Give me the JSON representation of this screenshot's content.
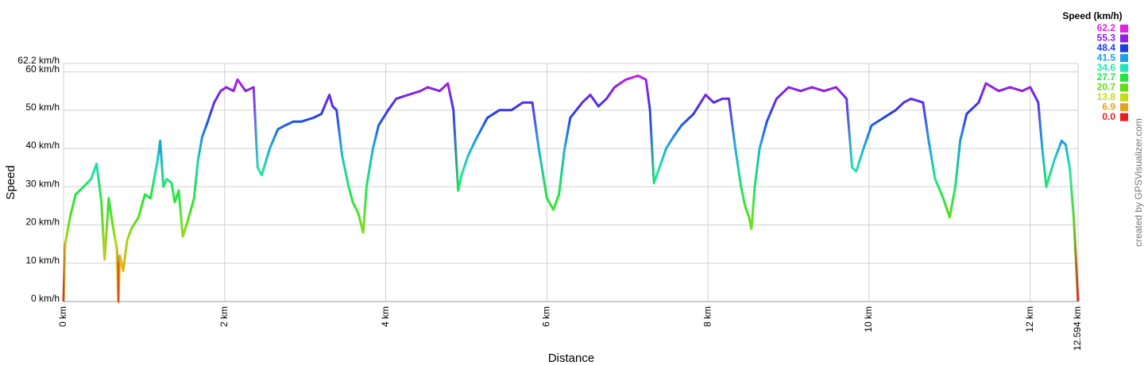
{
  "chart_data": {
    "type": "line",
    "x_label": "Distance",
    "y_label": "Speed",
    "credit": "created by GPSVisualizer.com",
    "legend_title": "Speed (km/h)",
    "color_scale": [
      {
        "value": 62.2,
        "color": "#e81ee8"
      },
      {
        "value": 55.3,
        "color": "#8c1ee8"
      },
      {
        "value": 48.4,
        "color": "#1e3ce8"
      },
      {
        "value": 41.5,
        "color": "#1ea0e8"
      },
      {
        "value": 34.6,
        "color": "#1ee8b4"
      },
      {
        "value": 27.7,
        "color": "#1ee83c"
      },
      {
        "value": 20.7,
        "color": "#64dc14"
      },
      {
        "value": 13.8,
        "color": "#c8dc14"
      },
      {
        "value": 6.9,
        "color": "#e8a01e"
      },
      {
        "value": 0,
        "label": "0.0",
        "color": "#e81e1e"
      }
    ],
    "xlim": [
      0,
      12.594
    ],
    "ylim": [
      0,
      62.2
    ],
    "xticks": [
      {
        "value": 0,
        "label": "0 km"
      },
      {
        "value": 2,
        "label": "2 km"
      },
      {
        "value": 4,
        "label": "4 km"
      },
      {
        "value": 6,
        "label": "6 km"
      },
      {
        "value": 8,
        "label": "8 km"
      },
      {
        "value": 10,
        "label": "10 km"
      },
      {
        "value": 12,
        "label": "12 km"
      },
      {
        "value": 12.594,
        "label": "12.594 km"
      }
    ],
    "yticks": [
      {
        "value": 0,
        "label": "0 km/h"
      },
      {
        "value": 10,
        "label": "10 km/h"
      },
      {
        "value": 20,
        "label": "20 km/h"
      },
      {
        "value": 30,
        "label": "30 km/h"
      },
      {
        "value": 40,
        "label": "40 km/h"
      },
      {
        "value": 50,
        "label": "50 km/h"
      },
      {
        "value": 60,
        "label": "60 km/h"
      },
      {
        "value": 62.2,
        "label": "62.2 km/h"
      }
    ],
    "grid": true,
    "x": [
      0,
      0.02,
      0.08,
      0.15,
      0.25,
      0.34,
      0.41,
      0.47,
      0.51,
      0.56,
      0.61,
      0.66,
      0.68,
      0.7,
      0.74,
      0.79,
      0.84,
      0.93,
      1.01,
      1.08,
      1.16,
      1.2,
      1.24,
      1.28,
      1.34,
      1.38,
      1.43,
      1.48,
      1.54,
      1.62,
      1.67,
      1.72,
      1.79,
      1.87,
      1.95,
      2.02,
      2.11,
      2.16,
      2.26,
      2.36,
      2.41,
      2.46,
      2.56,
      2.66,
      2.75,
      2.85,
      2.95,
      3.1,
      3.2,
      3.3,
      3.34,
      3.39,
      3.46,
      3.54,
      3.59,
      3.66,
      3.72,
      3.76,
      3.84,
      3.91,
      4.03,
      4.13,
      4.28,
      4.43,
      4.52,
      4.67,
      4.77,
      4.84,
      4.9,
      4.94,
      5.02,
      5.11,
      5.26,
      5.41,
      5.56,
      5.7,
      5.82,
      5.9,
      6,
      6.08,
      6.15,
      6.22,
      6.29,
      6.44,
      6.54,
      6.64,
      6.74,
      6.84,
      6.98,
      7.13,
      7.23,
      7.28,
      7.33,
      7.38,
      7.48,
      7.57,
      7.67,
      7.82,
      7.97,
      8.07,
      8.18,
      8.26,
      8.34,
      8.41,
      8.46,
      8.51,
      8.54,
      8.58,
      8.64,
      8.73,
      8.85,
      9,
      9.15,
      9.29,
      9.44,
      9.59,
      9.72,
      9.79,
      9.84,
      9.93,
      10.03,
      10.18,
      10.33,
      10.43,
      10.52,
      10.67,
      10.74,
      10.82,
      10.92,
      11,
      11.07,
      11.13,
      11.21,
      11.36,
      11.45,
      11.61,
      11.75,
      11.9,
      12,
      12.1,
      12.15,
      12.2,
      12.3,
      12.39,
      12.44,
      12.49,
      12.54,
      12.594
    ],
    "series": [
      {
        "values": [
          0,
          15,
          22,
          28,
          30,
          32,
          36,
          26,
          11,
          27,
          20,
          14,
          0,
          12,
          8,
          16,
          19,
          22,
          28,
          27,
          36,
          42,
          30,
          32,
          31,
          26,
          29,
          17,
          21,
          27,
          37,
          43,
          47,
          52,
          55,
          56,
          55,
          58,
          55,
          56,
          35,
          33,
          40,
          45,
          46,
          47,
          47,
          48,
          49,
          54,
          51,
          50,
          38,
          30,
          26,
          23,
          18,
          30,
          40,
          46,
          50,
          53,
          54,
          55,
          56,
          55,
          57,
          50,
          29,
          33,
          38,
          42,
          48,
          50,
          50,
          52,
          52,
          40,
          27,
          24,
          28,
          40,
          48,
          52,
          54,
          51,
          53,
          56,
          58,
          59,
          58,
          50,
          31,
          34,
          40,
          43,
          46,
          49,
          54,
          52,
          53,
          53,
          40,
          30,
          25,
          22,
          19,
          30,
          40,
          47,
          53,
          56,
          55,
          56,
          55,
          56,
          53,
          35,
          34,
          40,
          46,
          48,
          50,
          52,
          53,
          52,
          42,
          32,
          27,
          22,
          30,
          42,
          49,
          52,
          57,
          55,
          56,
          55,
          56,
          52,
          40,
          30,
          37,
          42,
          41,
          35,
          22,
          0
        ]
      }
    ]
  }
}
